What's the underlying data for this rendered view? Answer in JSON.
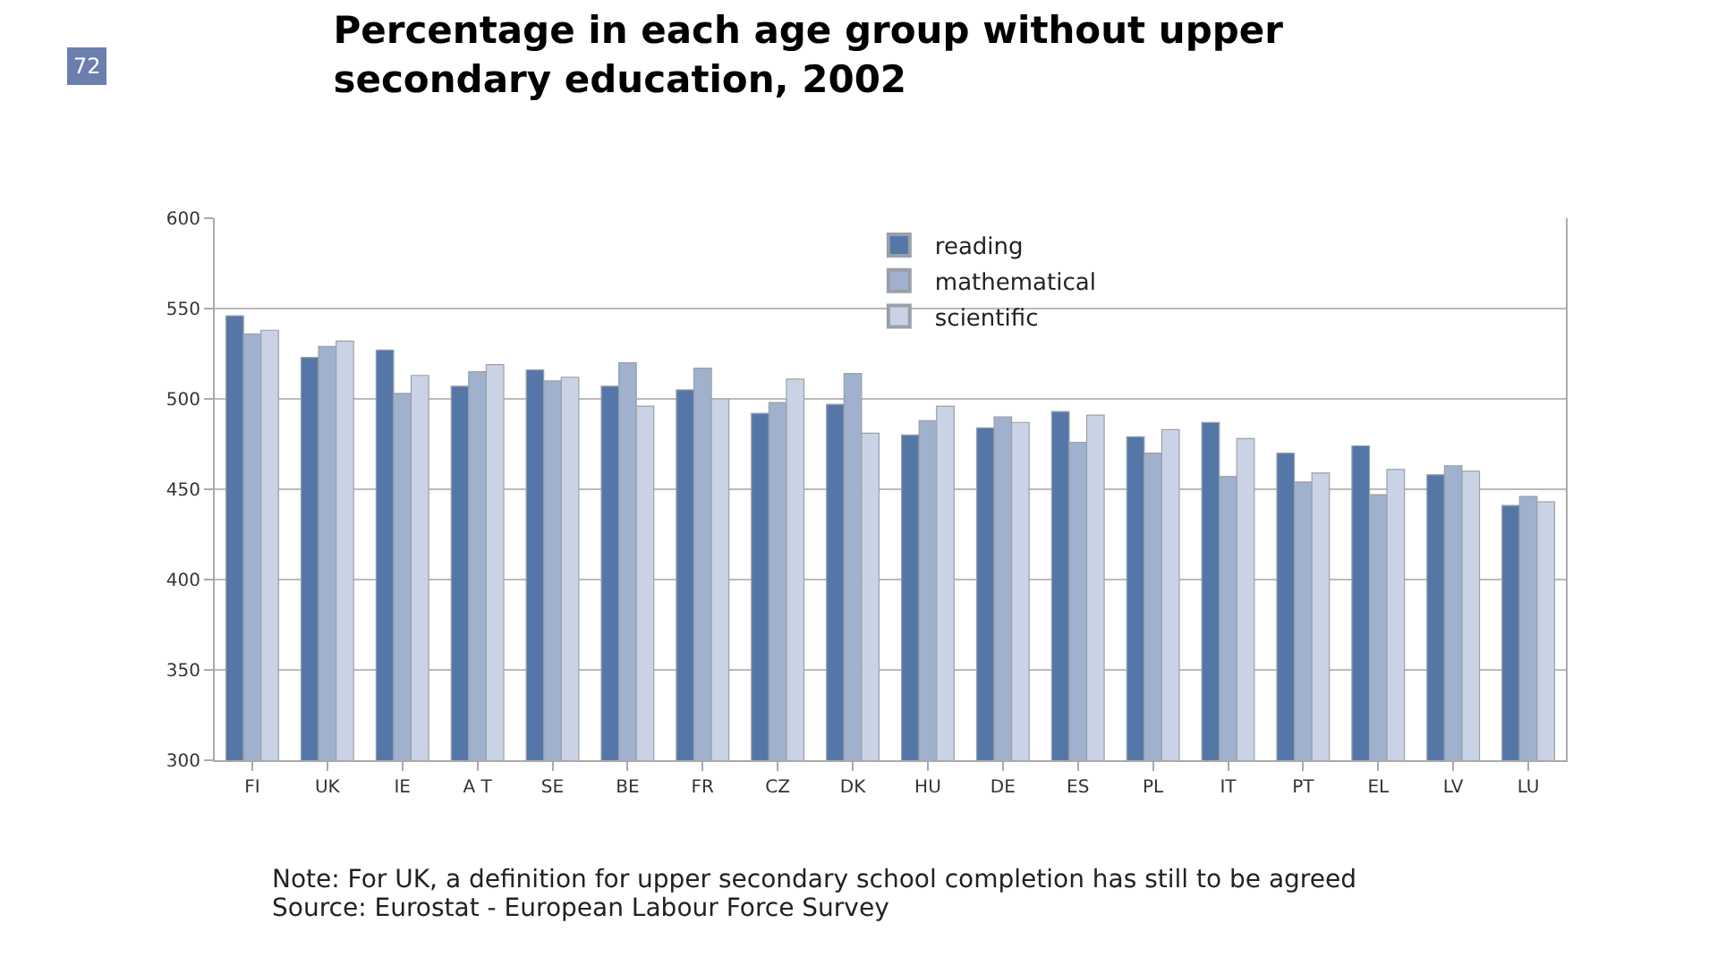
{
  "chart_data": {
    "type": "bar",
    "title": "Percentage in each age group without upper secondary education, 2002",
    "categories": [
      "FI",
      "UK",
      "IE",
      "A T",
      "SE",
      "BE",
      "FR",
      "CZ",
      "DK",
      "HU",
      "DE",
      "ES",
      "PL",
      "IT",
      "PT",
      "EL",
      "LV",
      "LU"
    ],
    "series": [
      {
        "name": "reading",
        "color": "#5577a8",
        "values": [
          546,
          523,
          527,
          507,
          516,
          507,
          505,
          492,
          497,
          480,
          484,
          493,
          479,
          487,
          470,
          474,
          458,
          441
        ]
      },
      {
        "name": "mathematical",
        "color": "#9fb1cd",
        "values": [
          536,
          529,
          503,
          515,
          510,
          520,
          517,
          498,
          514,
          488,
          490,
          476,
          470,
          457,
          454,
          447,
          463,
          446
        ]
      },
      {
        "name": "scientific",
        "color": "#c9d3e5",
        "values": [
          538,
          532,
          513,
          519,
          512,
          496,
          500,
          511,
          481,
          496,
          487,
          491,
          483,
          478,
          459,
          461,
          460,
          443
        ]
      }
    ],
    "ylim": [
      300,
      600
    ],
    "yticks": [
      300,
      350,
      400,
      450,
      500,
      550,
      600
    ],
    "grid": "y",
    "legend": "top",
    "annotations": [
      "72",
      "Note: For UK, a definition for upper secondary school completion has still to be agreed",
      "Source: Eurostat - European Labour Force Survey"
    ]
  }
}
